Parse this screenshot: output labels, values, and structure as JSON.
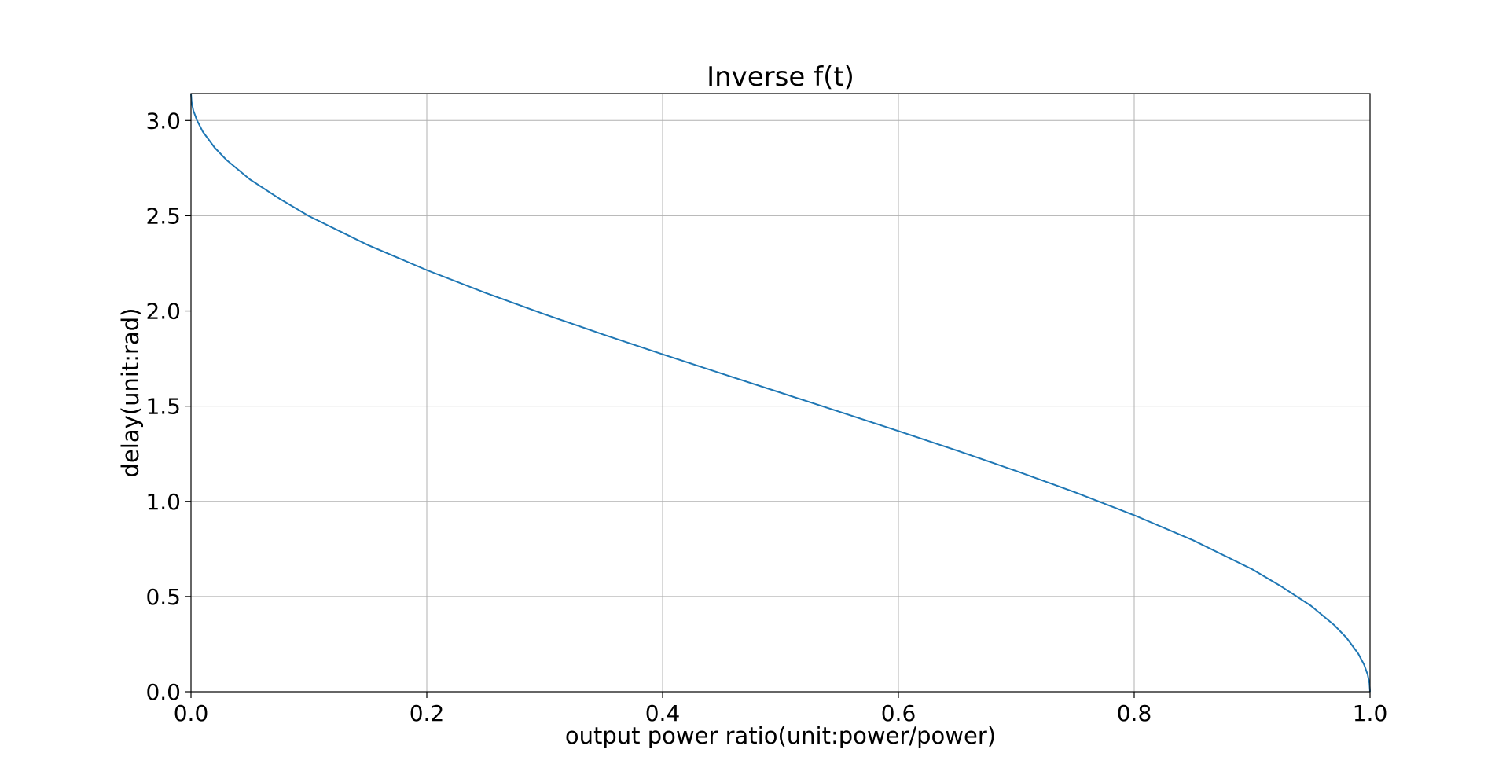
{
  "chart_data": {
    "type": "line",
    "title": "Inverse f(t)",
    "xlabel": "output power ratio(unit:power/power)",
    "ylabel": "delay(unit:rad)",
    "xlim": [
      0.0,
      1.0
    ],
    "ylim": [
      0.0,
      3.1416
    ],
    "xticks": [
      0.0,
      0.2,
      0.4,
      0.6,
      0.8,
      1.0
    ],
    "xtick_labels": [
      "0.0",
      "0.2",
      "0.4",
      "0.6",
      "0.8",
      "1.0"
    ],
    "yticks": [
      0.0,
      0.5,
      1.0,
      1.5,
      2.0,
      2.5,
      3.0
    ],
    "ytick_labels": [
      "0.0",
      "0.5",
      "1.0",
      "1.5",
      "2.0",
      "2.5",
      "3.0"
    ],
    "grid": true,
    "series": [
      {
        "color": "#1f77b4",
        "x": [
          0.0,
          0.0005,
          0.002,
          0.005,
          0.01,
          0.02,
          0.03,
          0.05,
          0.075,
          0.1,
          0.15,
          0.2,
          0.25,
          0.3,
          0.35,
          0.4,
          0.45,
          0.5,
          0.55,
          0.6,
          0.65,
          0.7,
          0.75,
          0.8,
          0.85,
          0.9,
          0.925,
          0.95,
          0.97,
          0.98,
          0.99,
          0.995,
          0.998,
          0.9995,
          1.0
        ],
        "y": [
          3.1416,
          3.0969,
          3.0521,
          3.0022,
          2.9413,
          2.8578,
          2.7934,
          2.6906,
          2.5896,
          2.4981,
          2.3462,
          2.2143,
          2.0944,
          1.9823,
          1.8755,
          1.7722,
          1.671,
          1.5708,
          1.4706,
          1.3694,
          1.2661,
          1.1593,
          1.0472,
          0.9273,
          0.7954,
          0.6435,
          0.552,
          0.451,
          0.3482,
          0.2838,
          0.2003,
          0.1415,
          0.0895,
          0.0447,
          0.0
        ]
      }
    ]
  }
}
